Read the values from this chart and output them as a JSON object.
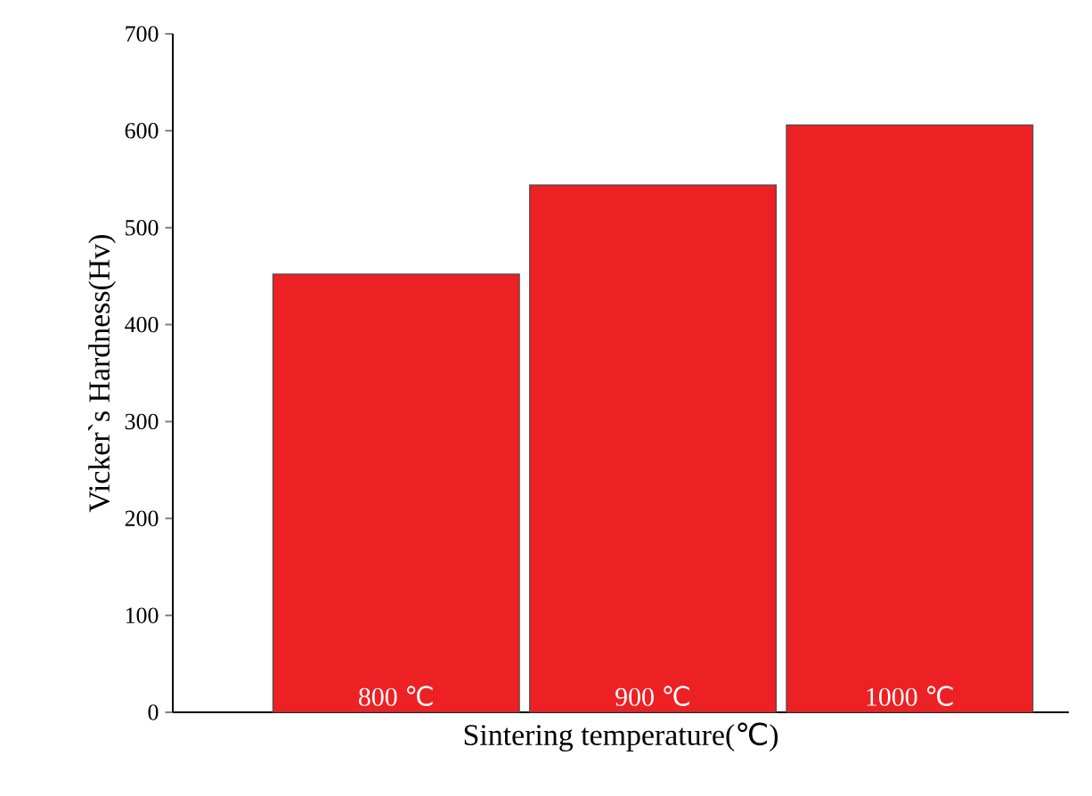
{
  "chart_data": {
    "type": "bar",
    "xlabel": "Sintering temperature(℃)",
    "ylabel": "Vicker`s Hardness(Hv)",
    "categories": [
      "800 ℃",
      "900 ℃",
      "1000 ℃"
    ],
    "values": [
      452,
      544,
      606
    ],
    "color": "#ed2024",
    "ylim": [
      0,
      700
    ],
    "yticks": [
      0,
      100,
      200,
      300,
      400,
      500,
      600,
      700
    ]
  }
}
